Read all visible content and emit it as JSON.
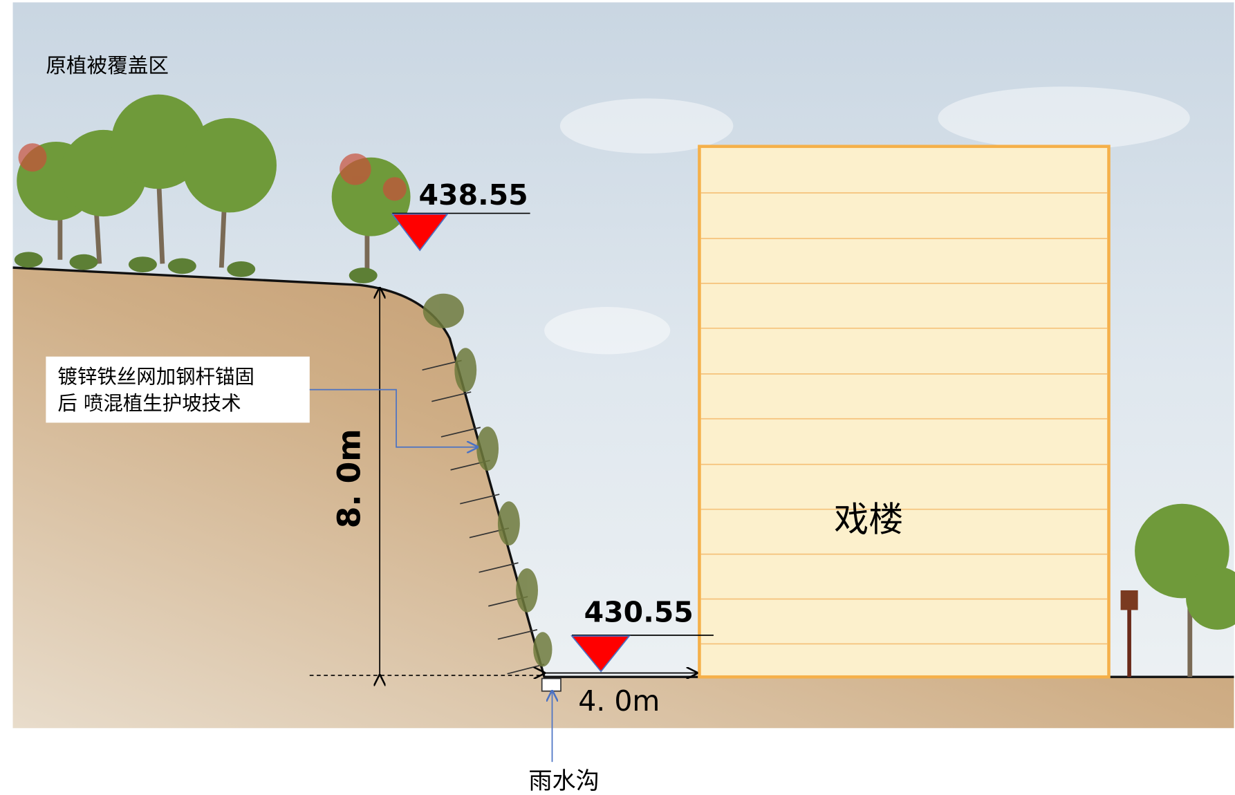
{
  "labels": {
    "area": "原植被覆盖区",
    "elevation_top": "438.55",
    "elevation_bottom": "430.55",
    "slope_note": [
      "镀锌铁丝网加钢杆锚固",
      "后 喷混植生护坡技术"
    ],
    "height_dim": "8. 0m",
    "width_dim": "4. 0m",
    "building": "戏楼",
    "ditch": "雨水沟"
  }
}
